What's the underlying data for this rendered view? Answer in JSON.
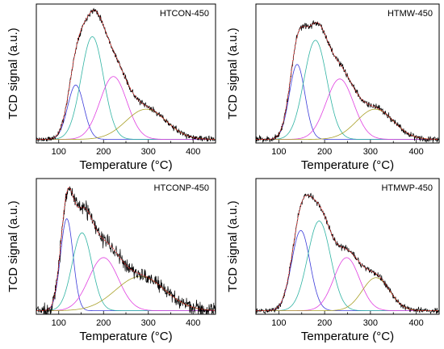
{
  "colors": {
    "experimental": "#000000",
    "fit": "#e32a2a",
    "peak1": "#3b3bd9",
    "peak2": "#2fb3a3",
    "peak3": "#e03fe0",
    "peak4": "#a9a028",
    "axis": "#000000"
  },
  "chart_data": [
    {
      "type": "line",
      "title": "HTCON-450",
      "xlabel": "Temperature (°C)",
      "ylabel": "TCD signal (a.u.)",
      "xlim": [
        50,
        450
      ],
      "xticks": [
        100,
        200,
        300,
        400
      ],
      "ylim": [
        0,
        1.15
      ],
      "y_tick_labels": false,
      "baseline": 0.03,
      "noise": 0.012,
      "seed": 11,
      "series": [
        {
          "peak": 1,
          "center": 138,
          "height": 0.45,
          "width": 18
        },
        {
          "peak": 2,
          "center": 175,
          "height": 0.85,
          "width": 25
        },
        {
          "peak": 3,
          "center": 222,
          "height": 0.52,
          "width": 30
        },
        {
          "peak": 4,
          "center": 295,
          "height": 0.25,
          "width": 45
        }
      ]
    },
    {
      "type": "line",
      "title": "HTMW-450",
      "xlabel": "Temperature (°C)",
      "ylabel": "TCD signal (a.u.)",
      "xlim": [
        50,
        450
      ],
      "xticks": [
        100,
        200,
        300,
        400
      ],
      "ylim": [
        0,
        1.15
      ],
      "y_tick_labels": false,
      "baseline": 0.03,
      "noise": 0.014,
      "seed": 23,
      "series": [
        {
          "peak": 1,
          "center": 140,
          "height": 0.62,
          "width": 17
        },
        {
          "peak": 2,
          "center": 180,
          "height": 0.82,
          "width": 25
        },
        {
          "peak": 3,
          "center": 233,
          "height": 0.5,
          "width": 30
        },
        {
          "peak": 4,
          "center": 310,
          "height": 0.25,
          "width": 40
        }
      ]
    },
    {
      "type": "line",
      "title": "HTCONP-450",
      "xlabel": "Temperature (°C)",
      "ylabel": "TCD signal (a.u.)",
      "xlim": [
        50,
        450
      ],
      "xticks": [
        100,
        200,
        300,
        400
      ],
      "ylim": [
        0,
        1.15
      ],
      "y_tick_labels": false,
      "baseline": 0.03,
      "noise": 0.032,
      "seed": 37,
      "series": [
        {
          "peak": 1,
          "center": 118,
          "height": 0.78,
          "width": 14
        },
        {
          "peak": 2,
          "center": 152,
          "height": 0.66,
          "width": 22
        },
        {
          "peak": 3,
          "center": 200,
          "height": 0.45,
          "width": 33
        },
        {
          "peak": 4,
          "center": 282,
          "height": 0.29,
          "width": 55
        }
      ]
    },
    {
      "type": "line",
      "title": "HTMWP-450",
      "xlabel": "Temperature (°C)",
      "ylabel": "TCD signal (a.u.)",
      "xlim": [
        50,
        450
      ],
      "xticks": [
        100,
        200,
        300,
        400
      ],
      "ylim": [
        0,
        1.15
      ],
      "y_tick_labels": false,
      "baseline": 0.03,
      "noise": 0.013,
      "seed": 51,
      "series": [
        {
          "peak": 1,
          "center": 148,
          "height": 0.68,
          "width": 20
        },
        {
          "peak": 2,
          "center": 188,
          "height": 0.76,
          "width": 25
        },
        {
          "peak": 3,
          "center": 248,
          "height": 0.45,
          "width": 28
        },
        {
          "peak": 4,
          "center": 312,
          "height": 0.28,
          "width": 30
        }
      ]
    }
  ]
}
